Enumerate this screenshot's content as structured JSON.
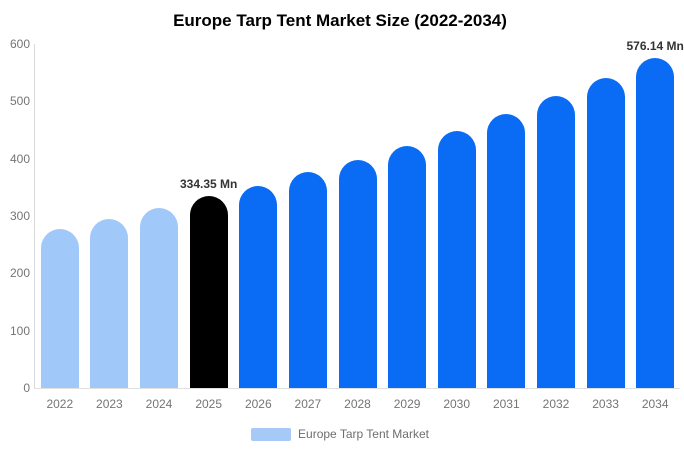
{
  "chart_data": {
    "type": "bar",
    "title": "Europe Tarp Tent Market Size (2022-2034)",
    "categories": [
      "2022",
      "2023",
      "2024",
      "2025",
      "2026",
      "2027",
      "2028",
      "2029",
      "2030",
      "2031",
      "2032",
      "2033",
      "2034"
    ],
    "values": [
      277,
      295,
      314,
      334.35,
      352,
      376,
      398,
      422,
      449,
      478,
      509,
      541,
      576.14
    ],
    "unit": "Mn",
    "xlabel": "",
    "ylabel": "",
    "ylim": [
      0,
      600
    ],
    "yticks": [
      0,
      100,
      200,
      300,
      400,
      500,
      600
    ],
    "grid": false,
    "legend_position": "bottom",
    "bar_colors": [
      "#A0C8F8",
      "#A0C8F8",
      "#A0C8F8",
      "#000000",
      "#0A6CF5",
      "#0A6CF5",
      "#0A6CF5",
      "#0A6CF5",
      "#0A6CF5",
      "#0A6CF5",
      "#0A6CF5",
      "#0A6CF5",
      "#0A6CF5"
    ],
    "annotations": [
      {
        "category": "2025",
        "text": "334.35 Mn"
      },
      {
        "category": "2034",
        "text": "576.14 Mn"
      }
    ]
  },
  "legend": {
    "label": "Europe Tarp Tent Market",
    "swatch_color": "#A6C9F7"
  },
  "colors": {
    "axis_line": "#d9d9d9",
    "baseline": "#e0e0e0",
    "tick_text": "#757575",
    "annotation_text": "#333333"
  }
}
